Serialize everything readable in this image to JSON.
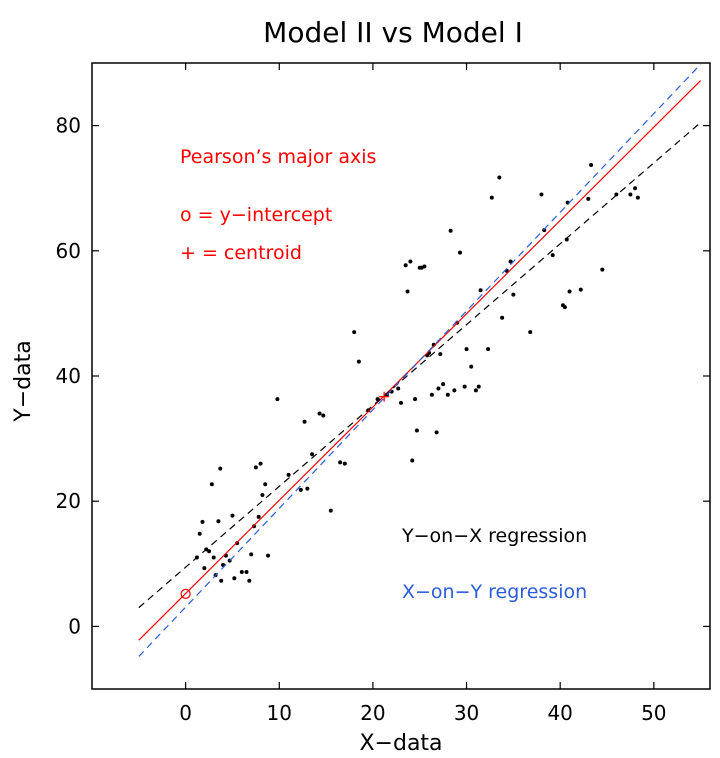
{
  "chart_data": {
    "type": "scatter",
    "title": "Model II vs Model I",
    "xlabel": "X−data",
    "ylabel": "Y−data",
    "xlim": [
      -10,
      56
    ],
    "ylim": [
      -10,
      90
    ],
    "xticks": [
      0,
      10,
      20,
      30,
      40,
      50
    ],
    "yticks": [
      0,
      20,
      40,
      60,
      80
    ],
    "grid": false,
    "annotations": {
      "pearson_label": "Pearson’s major axis",
      "intercept_label": "o  =  y−intercept",
      "centroid_label": "+  =  centroid",
      "yonx_label": "Y−on−X regression",
      "xony_label": "X−on−Y regression"
    },
    "colors": {
      "points": "#000000",
      "pearson": "#ff0000",
      "yonx": "#000000",
      "xony": "#2a5cdc"
    },
    "lines": [
      {
        "name": "Pearson’s major axis",
        "style": "solid",
        "color": "#ff0000",
        "x": [
          -5,
          55
        ],
        "y": [
          -2.2,
          87.2
        ]
      },
      {
        "name": "Y−on−X regression",
        "style": "dashed",
        "color": "#000000",
        "x": [
          -5,
          55
        ],
        "y": [
          3.0,
          80.5
        ]
      },
      {
        "name": "X−on−Y regression",
        "style": "dashed",
        "color": "#2a5cdc",
        "x": [
          -5,
          55
        ],
        "y": [
          -4.8,
          89.8
        ]
      }
    ],
    "y_intercept": {
      "x": 0,
      "y": 5.2
    },
    "centroid": {
      "x": 21.2,
      "y": 36.7
    },
    "points": [
      [
        1.2,
        11.0
      ],
      [
        1.5,
        14.8
      ],
      [
        1.8,
        16.7
      ],
      [
        2.0,
        9.3
      ],
      [
        2.2,
        12.3
      ],
      [
        2.5,
        12.0
      ],
      [
        2.8,
        22.7
      ],
      [
        3.0,
        11.0
      ],
      [
        3.2,
        8.2
      ],
      [
        3.5,
        16.8
      ],
      [
        3.7,
        25.2
      ],
      [
        3.8,
        7.3
      ],
      [
        4.0,
        9.8
      ],
      [
        4.3,
        11.3
      ],
      [
        4.7,
        10.5
      ],
      [
        5.0,
        17.7
      ],
      [
        5.2,
        7.7
      ],
      [
        5.5,
        13.3
      ],
      [
        6.0,
        8.7
      ],
      [
        6.5,
        8.7
      ],
      [
        6.8,
        7.3
      ],
      [
        7.0,
        11.5
      ],
      [
        7.3,
        16.0
      ],
      [
        7.5,
        25.4
      ],
      [
        7.8,
        17.5
      ],
      [
        8.0,
        26.0
      ],
      [
        8.2,
        21.0
      ],
      [
        8.5,
        22.7
      ],
      [
        8.8,
        11.3
      ],
      [
        9.8,
        36.3
      ],
      [
        11.0,
        24.2
      ],
      [
        12.3,
        21.8
      ],
      [
        12.7,
        32.7
      ],
      [
        13.0,
        22.0
      ],
      [
        13.5,
        27.5
      ],
      [
        14.3,
        34.0
      ],
      [
        14.7,
        33.7
      ],
      [
        15.5,
        18.5
      ],
      [
        16.5,
        26.2
      ],
      [
        17.0,
        26.0
      ],
      [
        18.0,
        47.0
      ],
      [
        18.5,
        42.3
      ],
      [
        19.5,
        34.5
      ],
      [
        20.5,
        36.3
      ],
      [
        21.5,
        37.0
      ],
      [
        22.0,
        37.5
      ],
      [
        22.7,
        38.0
      ],
      [
        23.0,
        35.7
      ],
      [
        23.5,
        57.7
      ],
      [
        23.7,
        53.5
      ],
      [
        24.0,
        58.3
      ],
      [
        24.2,
        26.5
      ],
      [
        24.5,
        36.3
      ],
      [
        24.7,
        31.3
      ],
      [
        25.0,
        57.3
      ],
      [
        25.2,
        57.3
      ],
      [
        25.5,
        57.5
      ],
      [
        25.8,
        43.3
      ],
      [
        26.0,
        43.7
      ],
      [
        26.3,
        37.0
      ],
      [
        26.5,
        45.0
      ],
      [
        26.8,
        31.0
      ],
      [
        27.0,
        38.0
      ],
      [
        27.2,
        43.5
      ],
      [
        27.5,
        38.7
      ],
      [
        28.0,
        37.0
      ],
      [
        28.3,
        63.2
      ],
      [
        28.7,
        37.7
      ],
      [
        29.0,
        48.5
      ],
      [
        29.3,
        59.7
      ],
      [
        29.8,
        38.3
      ],
      [
        30.0,
        44.3
      ],
      [
        30.5,
        41.5
      ],
      [
        31.0,
        37.7
      ],
      [
        31.3,
        38.3
      ],
      [
        31.5,
        53.7
      ],
      [
        32.3,
        44.3
      ],
      [
        32.7,
        68.5
      ],
      [
        33.5,
        71.7
      ],
      [
        33.8,
        49.3
      ],
      [
        34.3,
        56.8
      ],
      [
        34.7,
        58.3
      ],
      [
        35.0,
        53.0
      ],
      [
        36.8,
        47.0
      ],
      [
        38.0,
        69.0
      ],
      [
        38.3,
        63.3
      ],
      [
        39.2,
        59.3
      ],
      [
        40.3,
        51.3
      ],
      [
        40.5,
        51.0
      ],
      [
        40.7,
        61.8
      ],
      [
        41.0,
        53.5
      ],
      [
        42.2,
        53.8
      ],
      [
        43.0,
        68.3
      ],
      [
        43.3,
        73.7
      ],
      [
        44.5,
        57.0
      ],
      [
        46.0,
        69.0
      ],
      [
        47.5,
        69.0
      ],
      [
        48.0,
        70.0
      ],
      [
        48.3,
        68.5
      ],
      [
        40.8,
        67.7
      ]
    ]
  }
}
